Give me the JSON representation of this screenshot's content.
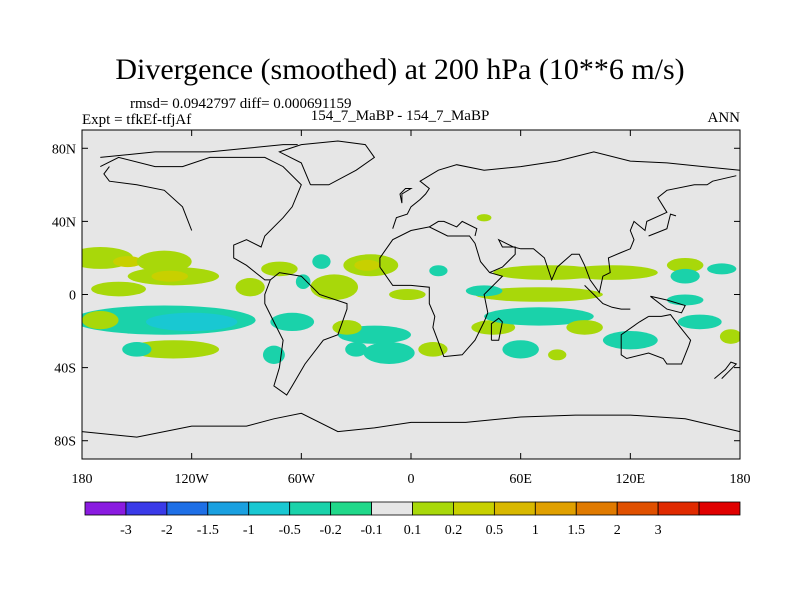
{
  "header": {
    "title": "Divergence (smoothed) at 200 hPa (10**6 m/s)",
    "stats": "rmsd= 0.0942797 diff= 0.000691159",
    "expt": "Expt = tfkEf-tfjAf",
    "center_label": "154_7_MaBP - 154_7_MaBP",
    "season": "ANN"
  },
  "chart_data": {
    "type": "heatmap",
    "title": "Divergence (smoothed) at 200 hPa (10**6 m/s)",
    "xlabel": "",
    "ylabel": "",
    "xlim": [
      -180,
      180
    ],
    "ylim": [
      -90,
      90
    ],
    "x_ticks": [
      {
        "value": -180,
        "label": "180"
      },
      {
        "value": -120,
        "label": "120W"
      },
      {
        "value": -60,
        "label": "60W"
      },
      {
        "value": 0,
        "label": "0"
      },
      {
        "value": 60,
        "label": "60E"
      },
      {
        "value": 120,
        "label": "120E"
      },
      {
        "value": 180,
        "label": "180"
      }
    ],
    "y_ticks": [
      {
        "value": 80,
        "label": "80N"
      },
      {
        "value": 40,
        "label": "40N"
      },
      {
        "value": 0,
        "label": "0"
      },
      {
        "value": -40,
        "label": "40S"
      },
      {
        "value": -80,
        "label": "80S"
      }
    ],
    "grid": false,
    "background_color": "#e6e6e6",
    "colorbar": {
      "placement": "bottom",
      "colors": [
        "#8a1be0",
        "#3a3ae8",
        "#1e6fe6",
        "#1aa0e0",
        "#19c8d2",
        "#1ad2aa",
        "#20d88a",
        "#e6e6e6",
        "#a8d80a",
        "#c8d000",
        "#d8b800",
        "#e0a000",
        "#e07a00",
        "#e05000",
        "#e02a00",
        "#e00000"
      ],
      "labels": [
        "-3",
        "-2",
        "-1.5",
        "-1",
        "-0.5",
        "-0.2",
        "-0.1",
        "0.1",
        "0.2",
        "0.5",
        "1",
        "1.5",
        "2",
        "3"
      ]
    },
    "regions": [
      {
        "level": 0.2,
        "lon": -170,
        "lat": 20,
        "rlon": 18,
        "rlat": 6
      },
      {
        "level": 0.5,
        "lon": -155,
        "lat": 18,
        "rlon": 8,
        "rlat": 3
      },
      {
        "level": 0.2,
        "lon": -135,
        "lat": 18,
        "rlon": 15,
        "rlat": 6
      },
      {
        "level": 0.2,
        "lon": -130,
        "lat": 10,
        "rlon": 25,
        "rlat": 5
      },
      {
        "level": 0.5,
        "lon": -132,
        "lat": 10,
        "rlon": 10,
        "rlat": 3
      },
      {
        "level": 0.2,
        "lon": -160,
        "lat": 3,
        "rlon": 15,
        "rlat": 4
      },
      {
        "level": 0.2,
        "lon": -88,
        "lat": 4,
        "rlon": 8,
        "rlat": 5
      },
      {
        "level": 0.2,
        "lon": -72,
        "lat": 14,
        "rlon": 10,
        "rlat": 4
      },
      {
        "level": -0.2,
        "lon": -59,
        "lat": 7,
        "rlon": 4,
        "rlat": 4
      },
      {
        "level": -0.2,
        "lon": -49,
        "lat": 18,
        "rlon": 5,
        "rlat": 4
      },
      {
        "level": 0.2,
        "lon": -42,
        "lat": 4,
        "rlon": 13,
        "rlat": 7
      },
      {
        "level": 0.2,
        "lon": -22,
        "lat": 16,
        "rlon": 15,
        "rlat": 6
      },
      {
        "level": 0.5,
        "lon": -24,
        "lat": 16,
        "rlon": 7,
        "rlat": 3
      },
      {
        "level": 0.2,
        "lon": -2,
        "lat": 0,
        "rlon": 10,
        "rlat": 3
      },
      {
        "level": -0.2,
        "lon": 15,
        "lat": 13,
        "rlon": 5,
        "rlat": 3
      },
      {
        "level": 0.2,
        "lon": 40,
        "lat": 42,
        "rlon": 4,
        "rlat": 2
      },
      {
        "level": 0.2,
        "lon": 75,
        "lat": 12,
        "rlon": 30,
        "rlat": 4
      },
      {
        "level": 0.2,
        "lon": 110,
        "lat": 12,
        "rlon": 25,
        "rlat": 4
      },
      {
        "level": 0.2,
        "lon": 150,
        "lat": 16,
        "rlon": 10,
        "rlat": 4
      },
      {
        "level": -0.2,
        "lon": 170,
        "lat": 14,
        "rlon": 8,
        "rlat": 3
      },
      {
        "level": -0.2,
        "lon": 150,
        "lat": 10,
        "rlon": 8,
        "rlat": 4
      },
      {
        "level": 0.2,
        "lon": 70,
        "lat": 0,
        "rlon": 35,
        "rlat": 4
      },
      {
        "level": -0.2,
        "lon": 40,
        "lat": 2,
        "rlon": 10,
        "rlat": 3
      },
      {
        "level": -0.2,
        "lon": 150,
        "lat": -3,
        "rlon": 10,
        "rlat": 3
      },
      {
        "level": -0.2,
        "lon": -135,
        "lat": -14,
        "rlon": 50,
        "rlat": 8
      },
      {
        "level": -0.5,
        "lon": -120,
        "lat": -15,
        "rlon": 25,
        "rlat": 5
      },
      {
        "level": 0.2,
        "lon": -170,
        "lat": -14,
        "rlon": 10,
        "rlat": 5
      },
      {
        "level": 0.2,
        "lon": -130,
        "lat": -30,
        "rlon": 25,
        "rlat": 5
      },
      {
        "level": -0.2,
        "lon": -150,
        "lat": -30,
        "rlon": 8,
        "rlat": 4
      },
      {
        "level": -0.2,
        "lon": -65,
        "lat": -15,
        "rlon": 12,
        "rlat": 5
      },
      {
        "level": -0.2,
        "lon": -20,
        "lat": -22,
        "rlon": 20,
        "rlat": 5
      },
      {
        "level": 0.2,
        "lon": -35,
        "lat": -18,
        "rlon": 8,
        "rlat": 4
      },
      {
        "level": -0.2,
        "lon": -12,
        "lat": -32,
        "rlon": 14,
        "rlat": 6
      },
      {
        "level": -0.2,
        "lon": -30,
        "lat": -30,
        "rlon": 6,
        "rlat": 4
      },
      {
        "level": -0.2,
        "lon": -75,
        "lat": -33,
        "rlon": 6,
        "rlat": 5
      },
      {
        "level": 0.2,
        "lon": 12,
        "lat": -30,
        "rlon": 8,
        "rlat": 4
      },
      {
        "level": 0.2,
        "lon": 45,
        "lat": -18,
        "rlon": 12,
        "rlat": 4
      },
      {
        "level": -0.2,
        "lon": 70,
        "lat": -12,
        "rlon": 30,
        "rlat": 5
      },
      {
        "level": 0.2,
        "lon": 95,
        "lat": -18,
        "rlon": 10,
        "rlat": 4
      },
      {
        "level": -0.2,
        "lon": 60,
        "lat": -30,
        "rlon": 10,
        "rlat": 5
      },
      {
        "level": 0.2,
        "lon": 80,
        "lat": -33,
        "rlon": 5,
        "rlat": 3
      },
      {
        "level": -0.2,
        "lon": 120,
        "lat": -25,
        "rlon": 15,
        "rlat": 5
      },
      {
        "level": -0.2,
        "lon": 158,
        "lat": -15,
        "rlon": 12,
        "rlat": 4
      },
      {
        "level": 0.2,
        "lon": 175,
        "lat": -23,
        "rlon": 6,
        "rlat": 4
      }
    ],
    "coastlines": [
      [
        [
          -170,
          70
        ],
        [
          -160,
          75
        ],
        [
          -140,
          70
        ],
        [
          -125,
          70
        ],
        [
          -110,
          75
        ],
        [
          -80,
          75
        ],
        [
          -70,
          70
        ],
        [
          -60,
          60
        ],
        [
          -65,
          48
        ],
        [
          -70,
          42
        ],
        [
          -80,
          32
        ],
        [
          -82,
          26
        ],
        [
          -90,
          30
        ],
        [
          -97,
          27
        ],
        [
          -97,
          20
        ],
        [
          -90,
          16
        ],
        [
          -85,
          12
        ],
        [
          -80,
          8
        ],
        [
          -77,
          8
        ],
        [
          -80,
          0
        ],
        [
          -80,
          -5
        ],
        [
          -75,
          -15
        ],
        [
          -70,
          -25
        ],
        [
          -72,
          -40
        ],
        [
          -75,
          -50
        ],
        [
          -68,
          -55
        ],
        [
          -65,
          -50
        ],
        [
          -58,
          -38
        ],
        [
          -48,
          -25
        ],
        [
          -40,
          -22
        ],
        [
          -35,
          -8
        ],
        [
          -35,
          -5
        ],
        [
          -50,
          0
        ],
        [
          -60,
          10
        ],
        [
          -72,
          12
        ],
        [
          -77,
          8
        ]
      ],
      [
        [
          -120,
          35
        ],
        [
          -125,
          48
        ],
        [
          -135,
          57
        ],
        [
          -150,
          60
        ],
        [
          -165,
          62
        ],
        [
          -168,
          66
        ],
        [
          -165,
          70
        ]
      ],
      [
        [
          -55,
          60
        ],
        [
          -45,
          60
        ],
        [
          -30,
          68
        ],
        [
          -20,
          75
        ],
        [
          -25,
          82
        ],
        [
          -40,
          84
        ],
        [
          -60,
          82
        ],
        [
          -72,
          78
        ],
        [
          -60,
          72
        ],
        [
          -55,
          60
        ]
      ],
      [
        [
          -17,
          15
        ],
        [
          -10,
          5
        ],
        [
          0,
          5
        ],
        [
          10,
          4
        ],
        [
          10,
          -5
        ],
        [
          13,
          -12
        ],
        [
          12,
          -18
        ],
        [
          18,
          -34
        ],
        [
          28,
          -33
        ],
        [
          35,
          -25
        ],
        [
          40,
          -15
        ],
        [
          42,
          -10
        ],
        [
          40,
          0
        ],
        [
          50,
          10
        ],
        [
          43,
          12
        ],
        [
          38,
          18
        ],
        [
          35,
          28
        ],
        [
          32,
          32
        ],
        [
          20,
          32
        ],
        [
          10,
          37
        ],
        [
          0,
          35
        ],
        [
          -10,
          30
        ],
        [
          -17,
          20
        ],
        [
          -17,
          15
        ]
      ],
      [
        [
          -10,
          36
        ],
        [
          -8,
          42
        ],
        [
          -2,
          44
        ],
        [
          0,
          48
        ],
        [
          5,
          52
        ],
        [
          8,
          55
        ],
        [
          10,
          58
        ],
        [
          5,
          62
        ],
        [
          15,
          68
        ],
        [
          25,
          71
        ],
        [
          40,
          68
        ],
        [
          60,
          70
        ],
        [
          80,
          73
        ],
        [
          100,
          78
        ],
        [
          120,
          73
        ],
        [
          140,
          72
        ],
        [
          160,
          70
        ],
        [
          180,
          68
        ]
      ],
      [
        [
          10,
          37
        ],
        [
          15,
          40
        ],
        [
          18,
          40
        ],
        [
          25,
          37
        ],
        [
          28,
          40
        ],
        [
          36,
          36
        ],
        [
          35,
          32
        ]
      ],
      [
        [
          43,
          12
        ],
        [
          50,
          15
        ],
        [
          57,
          22
        ],
        [
          57,
          26
        ],
        [
          50,
          26
        ],
        [
          48,
          30
        ],
        [
          56,
          26
        ],
        [
          60,
          25
        ],
        [
          67,
          25
        ],
        [
          73,
          20
        ],
        [
          77,
          8
        ],
        [
          80,
          15
        ],
        [
          88,
          22
        ],
        [
          92,
          22
        ],
        [
          95,
          16
        ],
        [
          98,
          8
        ],
        [
          103,
          1
        ],
        [
          105,
          10
        ],
        [
          109,
          12
        ],
        [
          108,
          20
        ],
        [
          115,
          23
        ],
        [
          120,
          25
        ],
        [
          122,
          30
        ],
        [
          120,
          35
        ],
        [
          122,
          40
        ],
        [
          128,
          35
        ],
        [
          129,
          40
        ],
        [
          140,
          45
        ],
        [
          135,
          53
        ],
        [
          140,
          57
        ],
        [
          155,
          60
        ],
        [
          162,
          60
        ],
        [
          165,
          62
        ],
        [
          178,
          65
        ]
      ],
      [
        [
          130,
          -12
        ],
        [
          125,
          -15
        ],
        [
          115,
          -22
        ],
        [
          115,
          -33
        ],
        [
          118,
          -35
        ],
        [
          130,
          -32
        ],
        [
          138,
          -35
        ],
        [
          140,
          -38
        ],
        [
          148,
          -38
        ],
        [
          152,
          -28
        ],
        [
          153,
          -25
        ],
        [
          145,
          -15
        ],
        [
          142,
          -11
        ],
        [
          137,
          -12
        ],
        [
          130,
          -12
        ]
      ],
      [
        [
          44,
          -25
        ],
        [
          48,
          -25
        ],
        [
          50,
          -15
        ],
        [
          48,
          -13
        ],
        [
          44,
          -16
        ],
        [
          44,
          -25
        ]
      ],
      [
        [
          130,
          32
        ],
        [
          135,
          34
        ],
        [
          140,
          36
        ],
        [
          141,
          40
        ],
        [
          142,
          44
        ],
        [
          145,
          43
        ]
      ],
      [
        [
          166,
          -46
        ],
        [
          172,
          -41
        ],
        [
          175,
          -37
        ],
        [
          178,
          -38
        ],
        [
          174,
          -42
        ],
        [
          170,
          -46
        ]
      ],
      [
        [
          -5,
          50
        ],
        [
          -5,
          55
        ],
        [
          0,
          58
        ],
        [
          -3,
          58
        ],
        [
          -6,
          55
        ],
        [
          -5,
          50
        ]
      ],
      [
        [
          95,
          5
        ],
        [
          100,
          0
        ],
        [
          105,
          -5
        ],
        [
          110,
          -7
        ],
        [
          115,
          -8
        ],
        [
          120,
          -8
        ]
      ],
      [
        [
          131,
          -1
        ],
        [
          140,
          -3
        ],
        [
          150,
          -6
        ],
        [
          148,
          -10
        ],
        [
          140,
          -8
        ],
        [
          131,
          -1
        ]
      ],
      [
        [
          -170,
          75
        ],
        [
          -140,
          78
        ],
        [
          -110,
          78
        ],
        [
          -90,
          80
        ],
        [
          -70,
          82
        ],
        [
          -62,
          82
        ]
      ],
      [
        [
          -180,
          -75
        ],
        [
          -150,
          -78
        ],
        [
          -120,
          -72
        ],
        [
          -90,
          -72
        ],
        [
          -75,
          -68
        ],
        [
          -60,
          -65
        ],
        [
          -40,
          -75
        ],
        [
          -20,
          -73
        ],
        [
          0,
          -70
        ],
        [
          30,
          -70
        ],
        [
          60,
          -67
        ],
        [
          90,
          -66
        ],
        [
          120,
          -66
        ],
        [
          150,
          -68
        ],
        [
          180,
          -75
        ]
      ]
    ]
  }
}
